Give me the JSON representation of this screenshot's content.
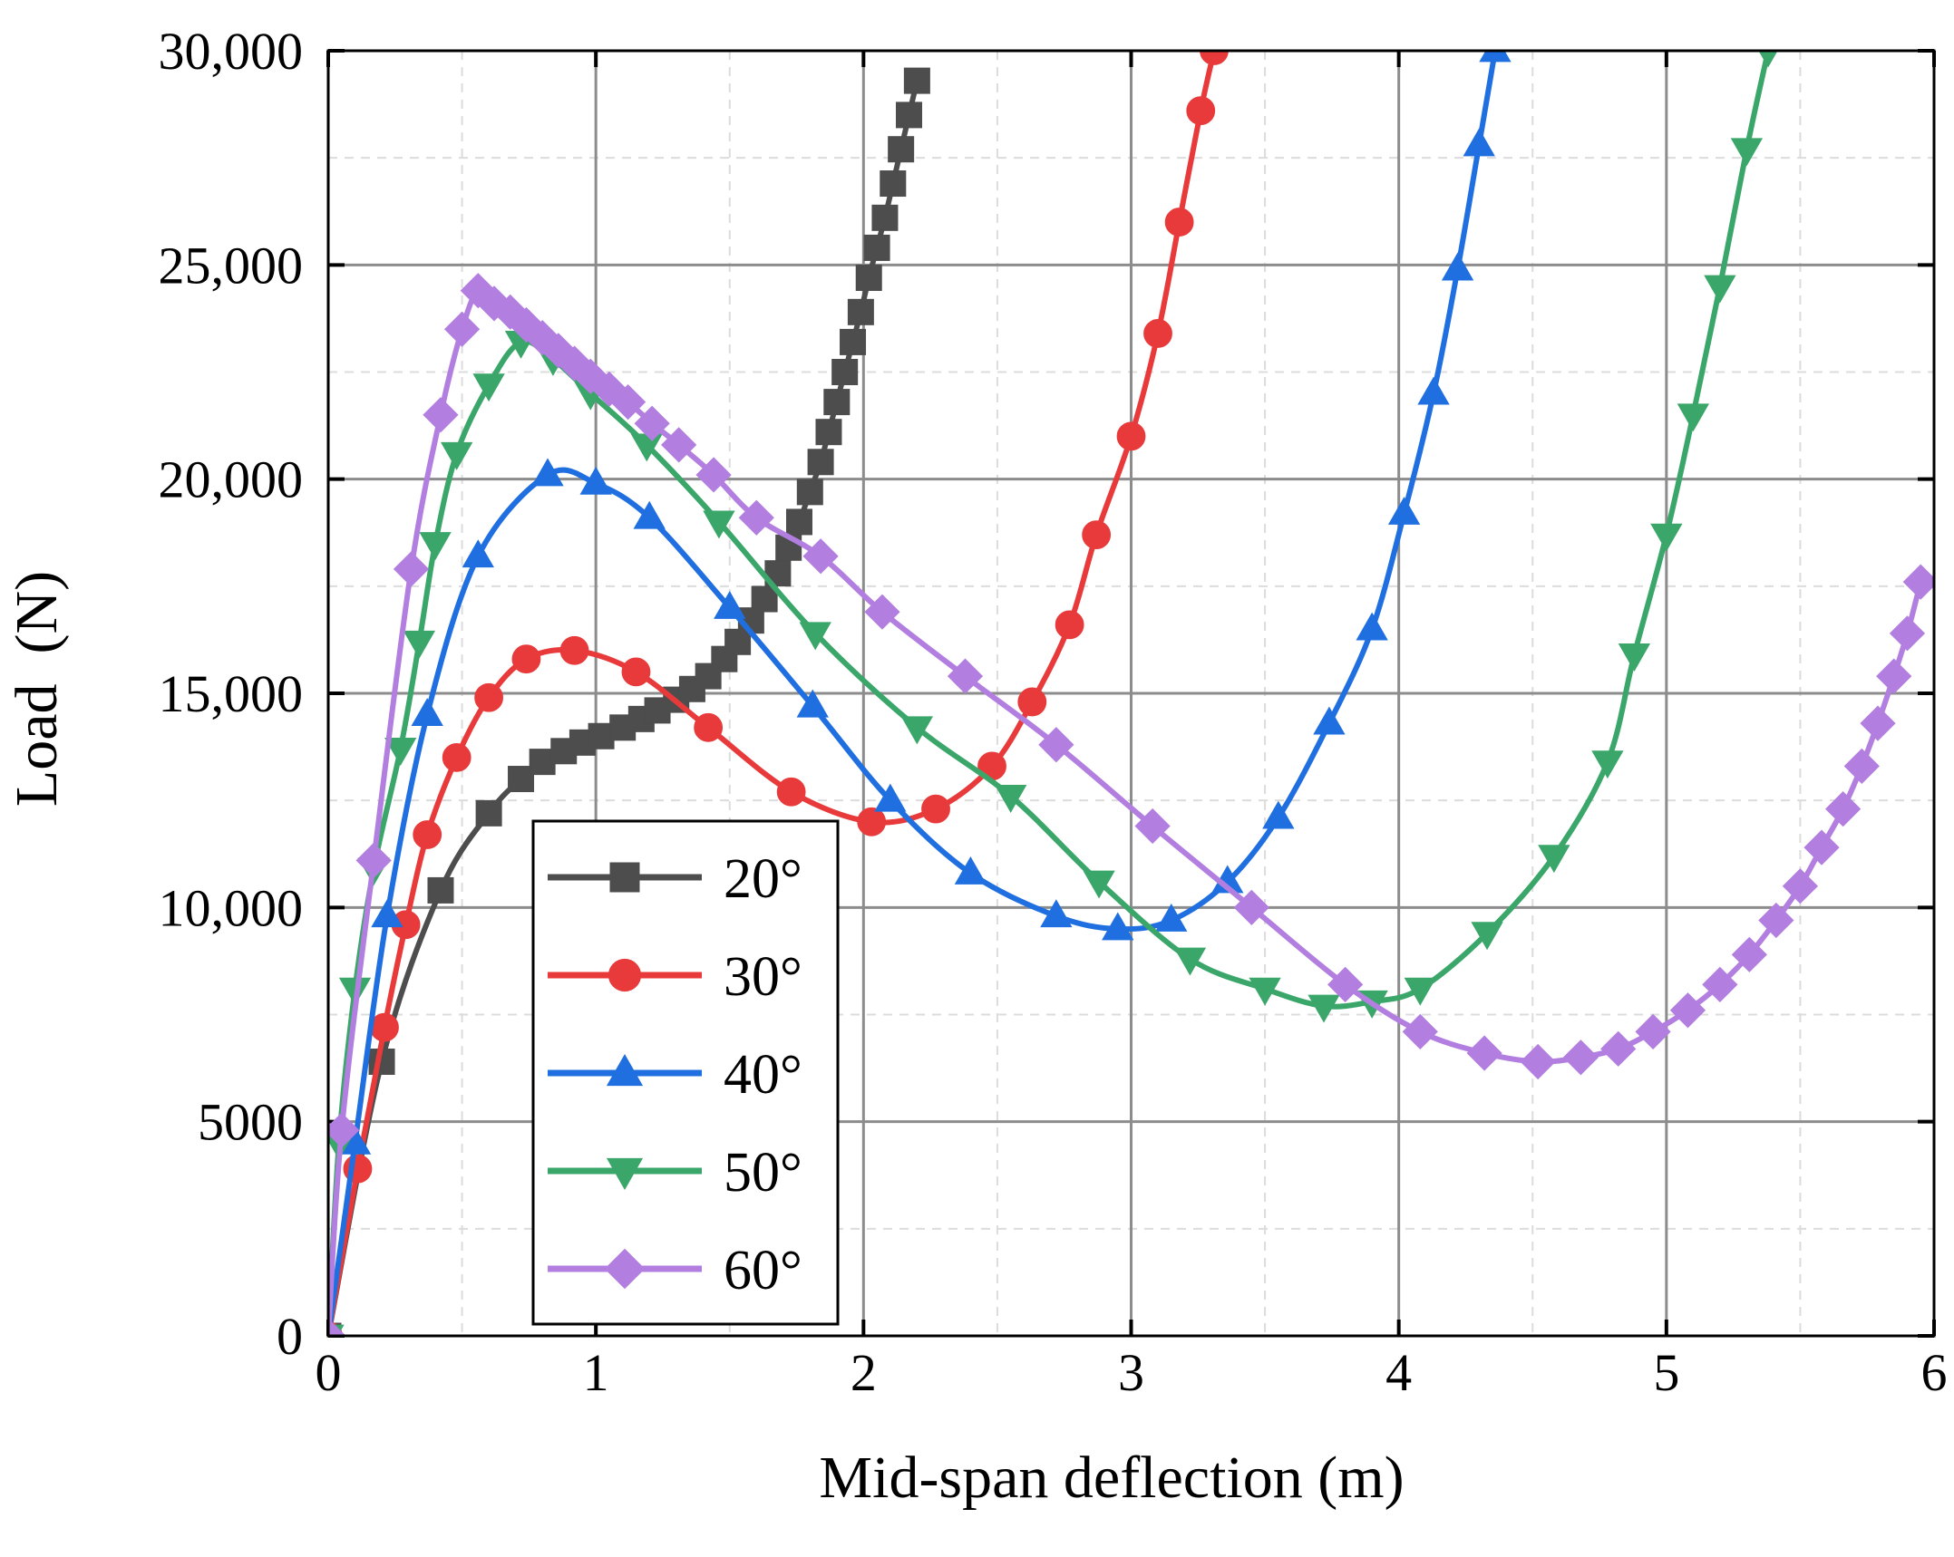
{
  "chart_data": {
    "type": "line",
    "title": "",
    "xlabel": "Mid-span deflection (m)",
    "ylabel": "Load  (N)",
    "xlim": [
      0,
      6
    ],
    "ylim": [
      0,
      30000
    ],
    "x_ticks": [
      0,
      1,
      2,
      3,
      4,
      5,
      6
    ],
    "x_tick_labels": [
      "0",
      "1",
      "2",
      "3",
      "4",
      "5",
      "6"
    ],
    "y_ticks": [
      0,
      5000,
      10000,
      15000,
      20000,
      25000,
      30000
    ],
    "y_tick_labels": [
      "0",
      "5000",
      "10,000",
      "15,000",
      "20,000",
      "25,000",
      "30,000"
    ],
    "grid": true,
    "legend_position": "bottom-left",
    "series": [
      {
        "name": "20°",
        "color": "#4d4d4d",
        "marker": "square",
        "points": [
          [
            0.0,
            0
          ],
          [
            0.2,
            6400
          ],
          [
            0.42,
            10400
          ],
          [
            0.6,
            12200
          ],
          [
            0.72,
            13000
          ],
          [
            0.8,
            13400
          ],
          [
            0.88,
            13650
          ],
          [
            0.95,
            13850
          ],
          [
            1.02,
            14000
          ],
          [
            1.1,
            14200
          ],
          [
            1.17,
            14400
          ],
          [
            1.23,
            14600
          ],
          [
            1.3,
            14850
          ],
          [
            1.36,
            15100
          ],
          [
            1.42,
            15400
          ],
          [
            1.48,
            15800
          ],
          [
            1.53,
            16200
          ],
          [
            1.58,
            16700
          ],
          [
            1.63,
            17200
          ],
          [
            1.68,
            17800
          ],
          [
            1.72,
            18400
          ],
          [
            1.76,
            19000
          ],
          [
            1.8,
            19700
          ],
          [
            1.84,
            20400
          ],
          [
            1.87,
            21100
          ],
          [
            1.9,
            21800
          ],
          [
            1.93,
            22500
          ],
          [
            1.96,
            23200
          ],
          [
            1.99,
            23900
          ],
          [
            2.02,
            24700
          ],
          [
            2.05,
            25400
          ],
          [
            2.08,
            26100
          ],
          [
            2.11,
            26900
          ],
          [
            2.14,
            27700
          ],
          [
            2.17,
            28500
          ],
          [
            2.2,
            29300
          ]
        ]
      },
      {
        "name": "30°",
        "color": "#e83a3a",
        "marker": "circle",
        "points": [
          [
            0.0,
            0
          ],
          [
            0.11,
            3900
          ],
          [
            0.21,
            7200
          ],
          [
            0.29,
            9600
          ],
          [
            0.37,
            11700
          ],
          [
            0.48,
            13500
          ],
          [
            0.6,
            14900
          ],
          [
            0.74,
            15800
          ],
          [
            0.92,
            16000
          ],
          [
            1.15,
            15500
          ],
          [
            1.42,
            14200
          ],
          [
            1.73,
            12700
          ],
          [
            2.03,
            12000
          ],
          [
            2.27,
            12300
          ],
          [
            2.48,
            13300
          ],
          [
            2.63,
            14800
          ],
          [
            2.77,
            16600
          ],
          [
            2.87,
            18700
          ],
          [
            3.0,
            21000
          ],
          [
            3.1,
            23400
          ],
          [
            3.18,
            26000
          ],
          [
            3.26,
            28600
          ],
          [
            3.31,
            30000
          ]
        ]
      },
      {
        "name": "40°",
        "color": "#1f6fe0",
        "marker": "triangle-up",
        "points": [
          [
            0.0,
            0
          ],
          [
            0.1,
            4500
          ],
          [
            0.22,
            9800
          ],
          [
            0.37,
            14500
          ],
          [
            0.56,
            18200
          ],
          [
            0.82,
            20100
          ],
          [
            1.0,
            19900
          ],
          [
            1.2,
            19100
          ],
          [
            1.5,
            17000
          ],
          [
            1.81,
            14700
          ],
          [
            2.1,
            12500
          ],
          [
            2.4,
            10800
          ],
          [
            2.72,
            9800
          ],
          [
            2.95,
            9500
          ],
          [
            3.15,
            9700
          ],
          [
            3.36,
            10600
          ],
          [
            3.55,
            12100
          ],
          [
            3.74,
            14300
          ],
          [
            3.9,
            16500
          ],
          [
            4.02,
            19200
          ],
          [
            4.13,
            22000
          ],
          [
            4.22,
            24900
          ],
          [
            4.3,
            27800
          ],
          [
            4.36,
            30000
          ]
        ]
      },
      {
        "name": "50°",
        "color": "#3aa66a",
        "marker": "triangle-down",
        "points": [
          [
            0.0,
            0
          ],
          [
            0.04,
            4500
          ],
          [
            0.1,
            8100
          ],
          [
            0.17,
            10900
          ],
          [
            0.27,
            13700
          ],
          [
            0.34,
            16200
          ],
          [
            0.4,
            18500
          ],
          [
            0.48,
            20600
          ],
          [
            0.6,
            22200
          ],
          [
            0.72,
            23200
          ],
          [
            0.84,
            22800
          ],
          [
            0.98,
            22000
          ],
          [
            1.19,
            20800
          ],
          [
            1.46,
            19000
          ],
          [
            1.82,
            16400
          ],
          [
            2.2,
            14200
          ],
          [
            2.55,
            12600
          ],
          [
            2.88,
            10600
          ],
          [
            3.22,
            8800
          ],
          [
            3.5,
            8100
          ],
          [
            3.72,
            7700
          ],
          [
            3.9,
            7800
          ],
          [
            4.08,
            8100
          ],
          [
            4.33,
            9400
          ],
          [
            4.58,
            11200
          ],
          [
            4.78,
            13400
          ],
          [
            4.88,
            15900
          ],
          [
            5.0,
            18700
          ],
          [
            5.1,
            21500
          ],
          [
            5.2,
            24500
          ],
          [
            5.3,
            27700
          ],
          [
            5.38,
            30000
          ]
        ]
      },
      {
        "name": "60°",
        "color": "#b27ee0",
        "marker": "diamond",
        "points": [
          [
            0.0,
            0
          ],
          [
            0.05,
            4800
          ],
          [
            0.17,
            11100
          ],
          [
            0.31,
            17900
          ],
          [
            0.42,
            21500
          ],
          [
            0.5,
            23500
          ],
          [
            0.56,
            24400
          ],
          [
            0.62,
            24100
          ],
          [
            0.68,
            23900
          ],
          [
            0.74,
            23600
          ],
          [
            0.8,
            23300
          ],
          [
            0.86,
            23000
          ],
          [
            0.92,
            22700
          ],
          [
            0.98,
            22400
          ],
          [
            1.05,
            22100
          ],
          [
            1.12,
            21800
          ],
          [
            1.21,
            21300
          ],
          [
            1.31,
            20800
          ],
          [
            1.44,
            20100
          ],
          [
            1.6,
            19100
          ],
          [
            1.84,
            18200
          ],
          [
            2.07,
            16900
          ],
          [
            2.38,
            15400
          ],
          [
            2.72,
            13800
          ],
          [
            3.08,
            11900
          ],
          [
            3.45,
            10000
          ],
          [
            3.8,
            8200
          ],
          [
            4.08,
            7100
          ],
          [
            4.32,
            6600
          ],
          [
            4.52,
            6400
          ],
          [
            4.68,
            6500
          ],
          [
            4.82,
            6700
          ],
          [
            4.95,
            7100
          ],
          [
            5.08,
            7600
          ],
          [
            5.2,
            8200
          ],
          [
            5.31,
            8900
          ],
          [
            5.41,
            9700
          ],
          [
            5.5,
            10500
          ],
          [
            5.58,
            11400
          ],
          [
            5.66,
            12300
          ],
          [
            5.73,
            13300
          ],
          [
            5.79,
            14300
          ],
          [
            5.85,
            15400
          ],
          [
            5.9,
            16400
          ],
          [
            5.95,
            17600
          ]
        ]
      }
    ]
  }
}
